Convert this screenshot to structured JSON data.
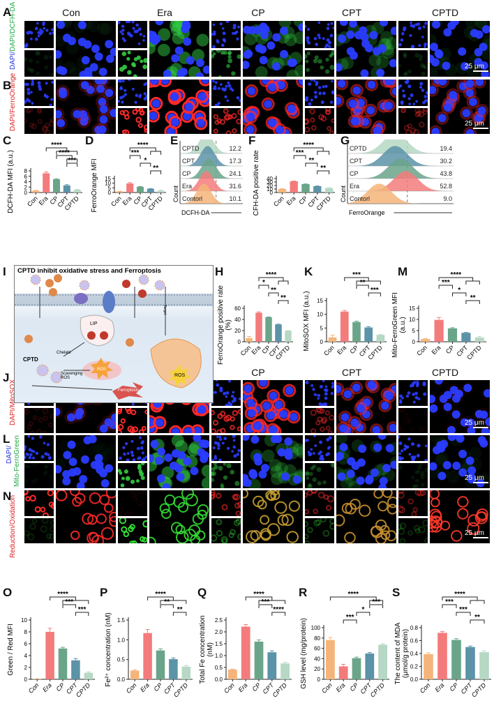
{
  "panel_letters": {
    "A": "A",
    "B": "B",
    "C": "C",
    "D": "D",
    "E": "E",
    "F": "F",
    "G": "G",
    "H": "H",
    "I": "I",
    "J": "J",
    "K": "K",
    "L": "L",
    "M": "M",
    "N": "N",
    "O": "O",
    "P": "P",
    "Q": "Q",
    "R": "R",
    "S": "S"
  },
  "conditions": [
    "Con",
    "Era",
    "CP",
    "CPT",
    "CPTD"
  ],
  "bar_colors": [
    "#f5b57a",
    "#f47b7b",
    "#6aa58a",
    "#5b93a8",
    "#b6d8c4"
  ],
  "microscopy": {
    "row_labels": {
      "A": "DAPI/DCFH-DA",
      "B": "DAPI/FerroOrange",
      "J": "DAPI/MitoSOX",
      "L1": "DAPI/",
      "L2": "Mito-FerroGreen",
      "N": "Reduction/Oxidation"
    },
    "scale_bar": "25 μm"
  },
  "diagram": {
    "title": "CPTD inhibit oxidative stress and Ferroptosis",
    "labels": {
      "lip": "LIP",
      "cptd": "CPTD",
      "chelate": "Chelate",
      "scavenging": "Scavenging ROS",
      "ros1": "ROS",
      "ros2": "ROS",
      "ferroptosis": "Ferroptosis",
      "target": "Target"
    }
  },
  "flow": [
    {
      "panel": "E",
      "xlabel": "DCFH-DA",
      "ylabel": "Count",
      "rows": [
        {
          "label": "CPTD",
          "value": "12.2"
        },
        {
          "label": "CPT",
          "value": "17.3"
        },
        {
          "label": "CP",
          "value": "24.1"
        },
        {
          "label": "Era",
          "value": "31.6"
        },
        {
          "label": "Contorl",
          "value": "10.1"
        }
      ]
    },
    {
      "panel": "G",
      "xlabel": "FerroOrange",
      "ylabel": "Count",
      "rows": [
        {
          "label": "CPTD",
          "value": "19.4"
        },
        {
          "label": "CPT",
          "value": "30.2"
        },
        {
          "label": "CP",
          "value": "43.8"
        },
        {
          "label": "Era",
          "value": "52.8"
        },
        {
          "label": "Contorl",
          "value": "9.0"
        }
      ]
    }
  ],
  "chart_data": [
    {
      "panel": "C",
      "type": "bar",
      "categories": [
        "Con",
        "Era",
        "CP",
        "CPT",
        "CPTD"
      ],
      "values": [
        0.7,
        7.1,
        4.9,
        2.6,
        1.0
      ],
      "errors": [
        0.08,
        0.5,
        0.2,
        0.3,
        0.12
      ],
      "ylabel": "DCFH-DA MFI (a.u.)",
      "ylim": [
        0,
        8
      ],
      "yticks": [
        "0",
        "2",
        "4",
        "6",
        "8"
      ],
      "sig": [
        {
          "from": 1,
          "to": [
            2,
            4
          ],
          "label": "****"
        },
        {
          "from": 2,
          "to": [
            3,
            4
          ],
          "label": "****"
        },
        {
          "from": 3,
          "to": [
            4,
            4
          ],
          "label": "***"
        }
      ]
    },
    {
      "panel": "D",
      "type": "bar",
      "categories": [
        "Con",
        "Era",
        "CP",
        "CPT",
        "CPTD"
      ],
      "values": [
        1.2,
        9.7,
        6.1,
        4.0,
        1.9
      ],
      "errors": [
        0.2,
        1.0,
        0.3,
        0.2,
        0.5
      ],
      "ylabel": "FerroOrange MFI",
      "ylim": [
        0,
        15
      ],
      "yticks": [
        "0",
        "5",
        "10",
        "15"
      ],
      "sig": [
        {
          "from": 1,
          "to": [
            3,
            4
          ],
          "label": "****"
        },
        {
          "from": 1,
          "to": [
            2,
            2
          ],
          "label": "***"
        },
        {
          "from": 2,
          "to": [
            3,
            3
          ],
          "label": "*"
        },
        {
          "from": 3,
          "to": [
            4,
            4
          ],
          "label": "**"
        }
      ]
    },
    {
      "panel": "F",
      "type": "bar",
      "categories": [
        "Con",
        "Era",
        "CP",
        "CPT",
        "CPTD"
      ],
      "values": [
        10,
        32,
        24,
        18,
        12.5
      ],
      "errors": [
        1,
        0.8,
        0.6,
        0.7,
        1.2
      ],
      "ylabel": "DCFH-DA positive rate",
      "ylim": [
        0,
        40
      ],
      "yticks": [
        "0",
        "10",
        "20",
        "30",
        "40"
      ],
      "sig": [
        {
          "from": 1,
          "to": [
            3,
            4
          ],
          "label": "****"
        },
        {
          "from": 1,
          "to": [
            2,
            2
          ],
          "label": "***"
        },
        {
          "from": 2,
          "to": [
            3,
            3
          ],
          "label": "**"
        },
        {
          "from": 3,
          "to": [
            4,
            4
          ],
          "label": "**"
        }
      ]
    },
    {
      "panel": "H",
      "type": "bar",
      "categories": [
        "Con",
        "Era",
        "CP",
        "CPT",
        "CPTD"
      ],
      "values": [
        6.5,
        52,
        44,
        31,
        19.5
      ],
      "errors": [
        3,
        1.5,
        0.5,
        0.5,
        0.3
      ],
      "ylabel": "FerroOrange positive rate (%)",
      "ylim": [
        0,
        60
      ],
      "yticks": [
        "0",
        "20",
        "40",
        "60"
      ],
      "sig": [
        {
          "from": 1,
          "to": [
            3,
            4
          ],
          "label": "****"
        },
        {
          "from": 1,
          "to": [
            2,
            2
          ],
          "label": "*"
        },
        {
          "from": 2,
          "to": [
            3,
            3
          ],
          "label": "**"
        },
        {
          "from": 3,
          "to": [
            4,
            4
          ],
          "label": "**"
        }
      ]
    },
    {
      "panel": "K",
      "type": "bar",
      "categories": [
        "Con",
        "Era",
        "CP",
        "CPT",
        "CPTD"
      ],
      "values": [
        1.6,
        11,
        7.2,
        5.2,
        2.5
      ],
      "errors": [
        0.8,
        0.4,
        0.3,
        0.3,
        0.1
      ],
      "ylabel": "MitoSOX MFI (a.u.)",
      "ylim": [
        0,
        15
      ],
      "yticks": [
        "0",
        "5",
        "10",
        "15"
      ],
      "sig": [
        {
          "from": 1,
          "to": [
            2,
            4
          ],
          "label": "***"
        },
        {
          "from": 2,
          "to": [
            3,
            3
          ],
          "label": "**"
        },
        {
          "from": 3,
          "to": [
            4,
            4
          ],
          "label": "***"
        }
      ]
    },
    {
      "panel": "M",
      "type": "bar",
      "categories": [
        "Con",
        "Era",
        "CP",
        "CPT",
        "CPTD"
      ],
      "values": [
        1.2,
        9.8,
        6.0,
        4.0,
        1.9
      ],
      "errors": [
        0.2,
        1.1,
        0.3,
        0.2,
        0.5
      ],
      "ylabel": "Mito-FerroGreen MFI (a.u.)",
      "ylim": [
        0,
        15
      ],
      "yticks": [
        "0",
        "5",
        "10",
        "15"
      ],
      "sig": [
        {
          "from": 1,
          "to": [
            3,
            4
          ],
          "label": "****"
        },
        {
          "from": 1,
          "to": [
            2,
            2
          ],
          "label": "***"
        },
        {
          "from": 2,
          "to": [
            3,
            3
          ],
          "label": "*"
        },
        {
          "from": 3,
          "to": [
            4,
            4
          ],
          "label": "**"
        }
      ]
    },
    {
      "panel": "O",
      "type": "bar",
      "italic": true,
      "categories": [
        "Con",
        "Era",
        "CP",
        "CPT",
        "CPTD"
      ],
      "values": [
        0.05,
        8.0,
        5.2,
        3.2,
        1.1
      ],
      "errors": [
        0.05,
        0.6,
        0.2,
        0.3,
        0.15
      ],
      "ylabel": "Green / Red MFI",
      "ylim": [
        0,
        10
      ],
      "yticks": [
        "0",
        "2",
        "4",
        "6",
        "8",
        "10"
      ],
      "sig": [
        {
          "from": 1,
          "to": [
            2,
            4
          ],
          "label": "****"
        },
        {
          "from": 2,
          "to": [
            3,
            3
          ],
          "label": "***"
        },
        {
          "from": 3,
          "to": [
            4,
            4
          ],
          "label": "***"
        }
      ]
    },
    {
      "panel": "P",
      "type": "bar",
      "italic": true,
      "categories": [
        "Con",
        "Era",
        "CP",
        "CPT",
        "CPTD"
      ],
      "values": [
        0.22,
        1.17,
        0.73,
        0.51,
        0.32
      ],
      "errors": [
        0.02,
        0.09,
        0.04,
        0.03,
        0.03
      ],
      "ylabel": "Fe²⁺ concentration (nM)",
      "ylim": [
        0,
        1.5
      ],
      "yticks": [
        "0.0",
        "0.5",
        "1.0",
        "1.5"
      ],
      "sig": [
        {
          "from": 1,
          "to": [
            2,
            4
          ],
          "label": "****"
        },
        {
          "from": 2,
          "to": [
            3,
            3
          ],
          "label": "**"
        },
        {
          "from": 3,
          "to": [
            4,
            4
          ],
          "label": "**"
        }
      ]
    },
    {
      "panel": "Q",
      "type": "bar",
      "italic": true,
      "categories": [
        "Con",
        "Era",
        "CP",
        "CPT",
        "CPTD"
      ],
      "values": [
        0.41,
        2.22,
        1.59,
        1.14,
        0.67
      ],
      "errors": [
        0.02,
        0.09,
        0.07,
        0.06,
        0.05
      ],
      "ylabel": "Total Fe concentration (nM)",
      "ylim": [
        0,
        2.5
      ],
      "yticks": [
        "0.0",
        "0.5",
        "1.0",
        "1.5",
        "2.0",
        "2.5"
      ],
      "sig": [
        {
          "from": 1,
          "to": [
            2,
            4
          ],
          "label": "****"
        },
        {
          "from": 2,
          "to": [
            3,
            3
          ],
          "label": "***"
        },
        {
          "from": 3,
          "to": [
            4,
            4
          ],
          "label": "****"
        }
      ]
    },
    {
      "panel": "R",
      "type": "bar",
      "italic": true,
      "categories": [
        "Con",
        "Era",
        "CP",
        "CPT",
        "CPTD"
      ],
      "values": [
        76,
        25,
        41,
        50,
        67
      ],
      "errors": [
        5,
        4,
        2,
        2,
        2
      ],
      "ylabel": "GSH level (mg/protein)",
      "ylim": [
        0,
        100
      ],
      "yticks": [
        "0",
        "20",
        "40",
        "60",
        "80",
        "100"
      ],
      "sig": [
        {
          "from": 0,
          "to": [
            3,
            4
          ],
          "label": "****"
        },
        {
          "from": 3,
          "to": [
            4,
            4
          ],
          "label": "***"
        },
        {
          "from": 2,
          "to": [
            3,
            3
          ],
          "label": "*"
        },
        {
          "from": 1,
          "to": [
            2,
            2
          ],
          "label": "***"
        }
      ]
    },
    {
      "panel": "S",
      "type": "bar",
      "italic": true,
      "categories": [
        "Con",
        "Era",
        "CP",
        "CPT",
        "CPTD"
      ],
      "values": [
        0.39,
        0.72,
        0.61,
        0.5,
        0.42
      ],
      "errors": [
        0.02,
        0.02,
        0.02,
        0.015,
        0.02
      ],
      "ylabel": "The content of MDA (μmol/g protein)",
      "ylim": [
        0,
        0.8
      ],
      "yticks": [
        "0.0",
        "0.2",
        "0.4",
        "0.6",
        "0.8"
      ],
      "sig": [
        {
          "from": 1,
          "to": [
            3,
            4
          ],
          "label": "****"
        },
        {
          "from": 1,
          "to": [
            2,
            2
          ],
          "label": "***"
        },
        {
          "from": 2,
          "to": [
            3,
            3
          ],
          "label": "***"
        },
        {
          "from": 3,
          "to": [
            4,
            4
          ],
          "label": "**"
        }
      ]
    }
  ]
}
